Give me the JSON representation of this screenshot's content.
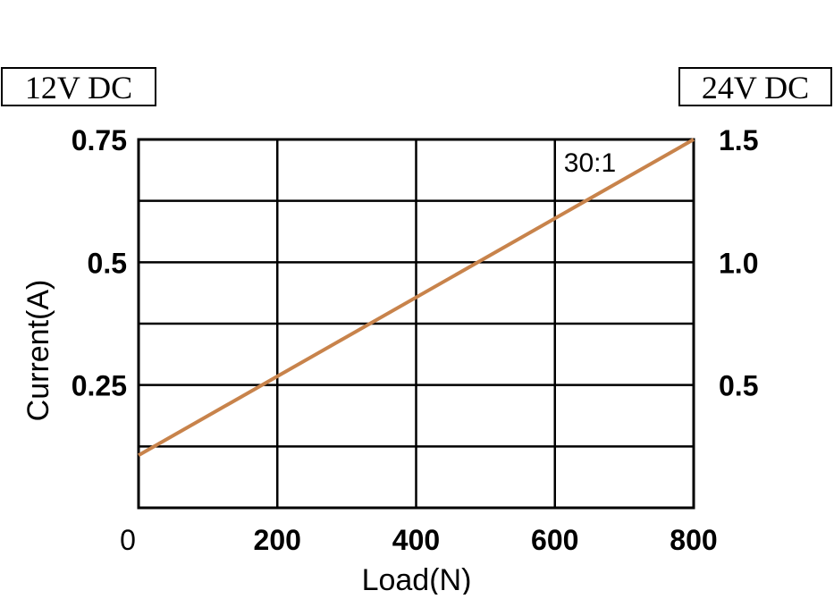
{
  "chart_data": {
    "type": "line",
    "left_voltage_label": "12V DC",
    "right_voltage_label": "24V DC",
    "xlabel": "Load(N)",
    "ylabel": "Current(A)",
    "x_ticks": [
      "0",
      "200",
      "400",
      "600",
      "800"
    ],
    "x_tick_values": [
      0,
      200,
      400,
      600,
      800
    ],
    "y_left_ticks": [
      "0.75",
      "0.5",
      "0.25"
    ],
    "y_left_tick_values": [
      0.75,
      0.5,
      0.25
    ],
    "y_right_ticks": [
      "1.5",
      "1.0",
      "0.5"
    ],
    "y_right_tick_values": [
      1.5,
      1.0,
      0.5
    ],
    "xlim": [
      0,
      800
    ],
    "ylim_left": [
      0,
      0.75
    ],
    "ylim_right": [
      0,
      1.5
    ],
    "grid": true,
    "y_grid_step": 0.125,
    "series": [
      {
        "name": "30:1",
        "color": "#c8834b",
        "x": [
          0,
          800
        ],
        "y": [
          0.107,
          0.75
        ]
      }
    ]
  }
}
